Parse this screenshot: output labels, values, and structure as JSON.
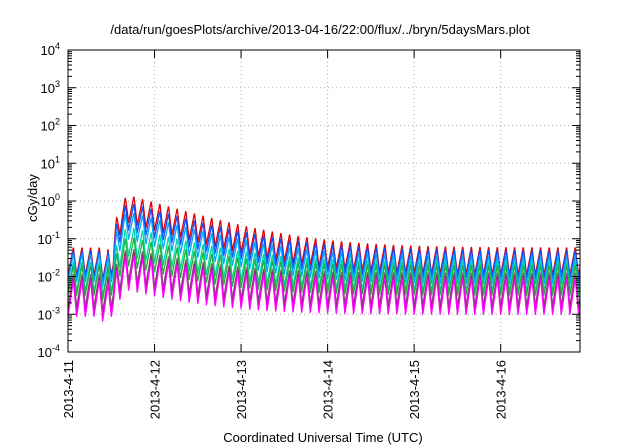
{
  "chart_data": {
    "type": "line",
    "title": "/data/run/goesPlots/archive/2013-04-16/22:00/flux/../bryn/5daysMars.plot",
    "xlabel": "Coordinated Universal Time (UTC)",
    "ylabel": "cGy/day",
    "yscale": "log",
    "ylim": [
      0.0001,
      10000
    ],
    "xlim": [
      "2013-04-11 00:00",
      "2013-04-16 22:00"
    ],
    "x_ticks": [
      "2013-4-11",
      "2013-4-12",
      "2013-4-13",
      "2013-4-14",
      "2013-4-15",
      "2013-4-16"
    ],
    "y_ticks": [
      {
        "base": "10",
        "exp": "-4"
      },
      {
        "base": "10",
        "exp": "-3"
      },
      {
        "base": "10",
        "exp": "-2"
      },
      {
        "base": "10",
        "exp": "-1"
      },
      {
        "base": "10",
        "exp": "0"
      },
      {
        "base": "10",
        "exp": "1"
      },
      {
        "base": "10",
        "exp": "2"
      },
      {
        "base": "10",
        "exp": "3"
      },
      {
        "base": "10",
        "exp": "4"
      }
    ],
    "grid": true,
    "legend": "none",
    "oscillation_period_hours": 2.4,
    "series": [
      {
        "color": "#e00000",
        "peak_start": 0.06,
        "peak_max": 1.5,
        "peak_end": 0.06,
        "trough_ratio": 0.18
      },
      {
        "color": "#1050ff",
        "peak_start": 0.05,
        "peak_max": 0.95,
        "peak_end": 0.05,
        "trough_ratio": 0.18
      },
      {
        "color": "#00a8ff",
        "peak_start": 0.04,
        "peak_max": 0.55,
        "peak_end": 0.035,
        "trough_ratio": 0.18
      },
      {
        "color": "#00d8a0",
        "peak_start": 0.025,
        "peak_max": 0.22,
        "peak_end": 0.025,
        "trough_ratio": 0.16
      },
      {
        "color": "#20b040",
        "peak_start": 0.02,
        "peak_max": 0.12,
        "peak_end": 0.02,
        "trough_ratio": 0.16
      },
      {
        "color": "#707070",
        "peak_start": 0.012,
        "peak_max": 0.06,
        "peak_end": 0.013,
        "trough_ratio": 0.13
      },
      {
        "color": "#a02080",
        "peak_start": 0.01,
        "peak_max": 0.05,
        "peak_end": 0.011,
        "trough_ratio": 0.12
      },
      {
        "color": "#ff00ff",
        "peak_start": 0.008,
        "peak_max": 0.04,
        "peak_end": 0.009,
        "trough_ratio": 0.11
      }
    ]
  }
}
